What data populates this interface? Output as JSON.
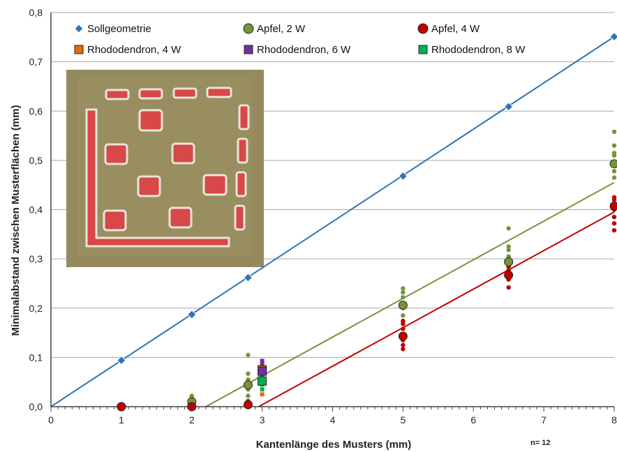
{
  "chart_data": {
    "type": "scatter",
    "xlabel": "Kantenlänge des Musters (mm)",
    "ylabel": "Minimalabstand  zwischen Musterflächen (mm)",
    "note": "n= 12",
    "xlim": [
      0,
      8
    ],
    "ylim": [
      0,
      0.8
    ],
    "x_ticks": [
      "0",
      "1",
      "2",
      "3",
      "4",
      "5",
      "6",
      "7",
      "8"
    ],
    "y_ticks": [
      "0,0",
      "0,1",
      "0,2",
      "0,3",
      "0,4",
      "0,5",
      "0,6",
      "0,7",
      "0,8"
    ],
    "grid": "horizontal",
    "legend_position": "top",
    "inset_photo": "photo of printed test pattern with red square fields on apple surface",
    "series": [
      {
        "name": "Sollgeometrie",
        "color": "#2e75b6",
        "marker": "diamond",
        "x": [
          1,
          2,
          2.8,
          5,
          6.5,
          8
        ],
        "y": [
          0.094,
          0.187,
          0.262,
          0.468,
          0.609,
          0.751
        ],
        "trend": [
          [
            0,
            0
          ],
          [
            8,
            0.751
          ]
        ]
      },
      {
        "name": "Apfel, 2 W",
        "color": "#77933c",
        "marker": "circle",
        "x": [
          1,
          2,
          2.8,
          5,
          6.5,
          8
        ],
        "y": [
          0.0,
          0.01,
          0.044,
          0.206,
          0.294,
          0.493
        ],
        "scatter_x": [
          2,
          2,
          2,
          2,
          2.8,
          2.8,
          2.8,
          2.8,
          2.8,
          2.8,
          5,
          5,
          5,
          5,
          5,
          5,
          6.5,
          6.5,
          6.5,
          6.5,
          6.5,
          8,
          8,
          8,
          8,
          8,
          8
        ],
        "scatter_y": [
          0.005,
          0.012,
          0.018,
          0.022,
          0.105,
          0.067,
          0.055,
          0.035,
          0.022,
          0.012,
          0.24,
          0.232,
          0.222,
          0.2,
          0.185,
          0.172,
          0.362,
          0.325,
          0.318,
          0.305,
          0.282,
          0.558,
          0.53,
          0.515,
          0.51,
          0.478,
          0.465
        ],
        "trend": [
          [
            2.2,
            0
          ],
          [
            8,
            0.455
          ]
        ]
      },
      {
        "name": "Apfel, 4 W",
        "color": "#c00000",
        "marker": "circle",
        "x": [
          1,
          2,
          2.8,
          5,
          6.5,
          8
        ],
        "y": [
          0.0,
          0.0,
          0.004,
          0.143,
          0.267,
          0.407
        ],
        "scatter_x": [
          2.8,
          2.8,
          5,
          5,
          5,
          5,
          5,
          5,
          6.5,
          6.5,
          6.5,
          6.5,
          8,
          8,
          8,
          8,
          8,
          8
        ],
        "scatter_y": [
          0.0,
          0.01,
          0.174,
          0.168,
          0.158,
          0.135,
          0.125,
          0.117,
          0.285,
          0.276,
          0.258,
          0.242,
          0.425,
          0.42,
          0.4,
          0.385,
          0.372,
          0.358
        ],
        "trend": [
          [
            2.95,
            0
          ],
          [
            8,
            0.395
          ]
        ]
      },
      {
        "name": "Rhododendron, 4 W",
        "color": "#e36c09",
        "marker": "square",
        "x": [
          3.0
        ],
        "y": [
          0.075
        ],
        "scatter_x": [
          3.0,
          3.0,
          3.0,
          3.0
        ],
        "scatter_y": [
          0.085,
          0.065,
          0.045,
          0.025
        ]
      },
      {
        "name": "Rhododendron, 6 W",
        "color": "#7030a0",
        "marker": "square",
        "x": [
          3.0
        ],
        "y": [
          0.072
        ],
        "scatter_x": [
          3.0,
          3.0,
          3.0,
          3.0
        ],
        "scatter_y": [
          0.093,
          0.085,
          0.078,
          0.06
        ]
      },
      {
        "name": "Rhododendron, 8 W",
        "color": "#00b050",
        "marker": "square",
        "x": [
          3.0
        ],
        "y": [
          0.052
        ],
        "scatter_x": [
          3.0,
          3.0,
          3.0,
          3.0
        ],
        "scatter_y": [
          0.065,
          0.058,
          0.045,
          0.035
        ]
      }
    ]
  }
}
